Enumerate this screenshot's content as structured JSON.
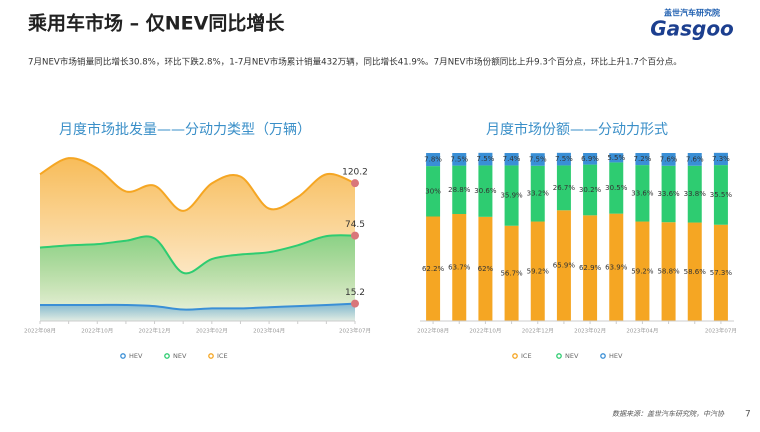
{
  "header": {
    "title": "乘用车市场 – 仅NEV同比增长",
    "subtitle": "7月NEV市场销量同比增长30.8%，环比下跌2.8%，1-7月NEV市场累计销量432万辆，同比增长41.9%。7月NEV市场份额同比上升9.3个百分点，环比上升1.7个百分点。",
    "logo_cn": "盖世汽车研究院",
    "logo_en": "Gasgoo"
  },
  "chart_data": [
    {
      "type": "area",
      "title": "月度市场批发量——分动力类型（万辆）",
      "categories": [
        "2022年08月",
        null,
        "2022年10月",
        null,
        "2022年12月",
        null,
        "2023年02月",
        null,
        "2023年04月",
        null,
        null,
        "2023年07月"
      ],
      "series": [
        {
          "name": "HEV",
          "color": "#3a8fd6",
          "values": [
            14,
            14,
            14,
            14,
            13,
            10,
            11,
            11,
            12,
            13,
            14,
            15.2
          ]
        },
        {
          "name": "NEV",
          "color": "#2ecc71",
          "values": [
            64,
            66,
            67,
            70,
            72,
            42,
            54,
            58,
            60,
            66,
            74,
            74.5
          ]
        },
        {
          "name": "ICE",
          "color": "#f5a623",
          "values": [
            128,
            142,
            133,
            113,
            118,
            96,
            120,
            126,
            98,
            108,
            128,
            120.2
          ]
        }
      ],
      "ylim": [
        0,
        150
      ],
      "marker_color": "#d9767a"
    },
    {
      "type": "bar",
      "stacked": true,
      "title": "月度市场份额——分动力形式",
      "categories": [
        "2022年08月",
        null,
        "2022年10月",
        null,
        "2022年12月",
        null,
        "2023年02月",
        null,
        "2023年04月",
        null,
        null,
        "2023年07月"
      ],
      "series": [
        {
          "name": "ICE",
          "color": "#f5a623",
          "values": [
            62.2,
            63.7,
            62,
            56.7,
            59.2,
            65.9,
            62.9,
            63.9,
            59.2,
            58.8,
            58.6,
            57.3
          ],
          "value_labels": [
            "62.2%",
            "63.7%",
            "62%",
            "56.7%",
            "59.2%",
            "65.9%",
            "62.9%",
            "63.9%",
            "59.2%",
            "58.8%",
            "58.6%",
            "57.3%"
          ]
        },
        {
          "name": "NEV",
          "color": "#2ecc71",
          "values": [
            30,
            28.8,
            30.6,
            35.9,
            33.2,
            26.7,
            30.2,
            30.5,
            33.6,
            33.6,
            33.8,
            35.5
          ],
          "value_labels": [
            "30%",
            "28.8%",
            "30.6%",
            "35.9%",
            "33.2%",
            "26.7%",
            "30.2%",
            "30.5%",
            "33.6%",
            "33.6%",
            "33.8%",
            "35.5%"
          ]
        },
        {
          "name": "HEV",
          "color": "#3a8fd6",
          "values": [
            7.8,
            7.5,
            7.5,
            7.4,
            7.5,
            7.5,
            6.9,
            5.5,
            7.2,
            7.6,
            7.6,
            7.3
          ],
          "value_labels": [
            "7.8%",
            "7.5%",
            "7.5%",
            "7.4%",
            "7.5%",
            "7.5%",
            "6.9%",
            "5.5%",
            "7.2%",
            "7.6%",
            "7.6%",
            "7.3%"
          ]
        }
      ],
      "ylim": [
        0,
        100
      ]
    }
  ],
  "footer": {
    "source": "数据来源：盖世汽车研究院，中汽协",
    "page": "7"
  }
}
